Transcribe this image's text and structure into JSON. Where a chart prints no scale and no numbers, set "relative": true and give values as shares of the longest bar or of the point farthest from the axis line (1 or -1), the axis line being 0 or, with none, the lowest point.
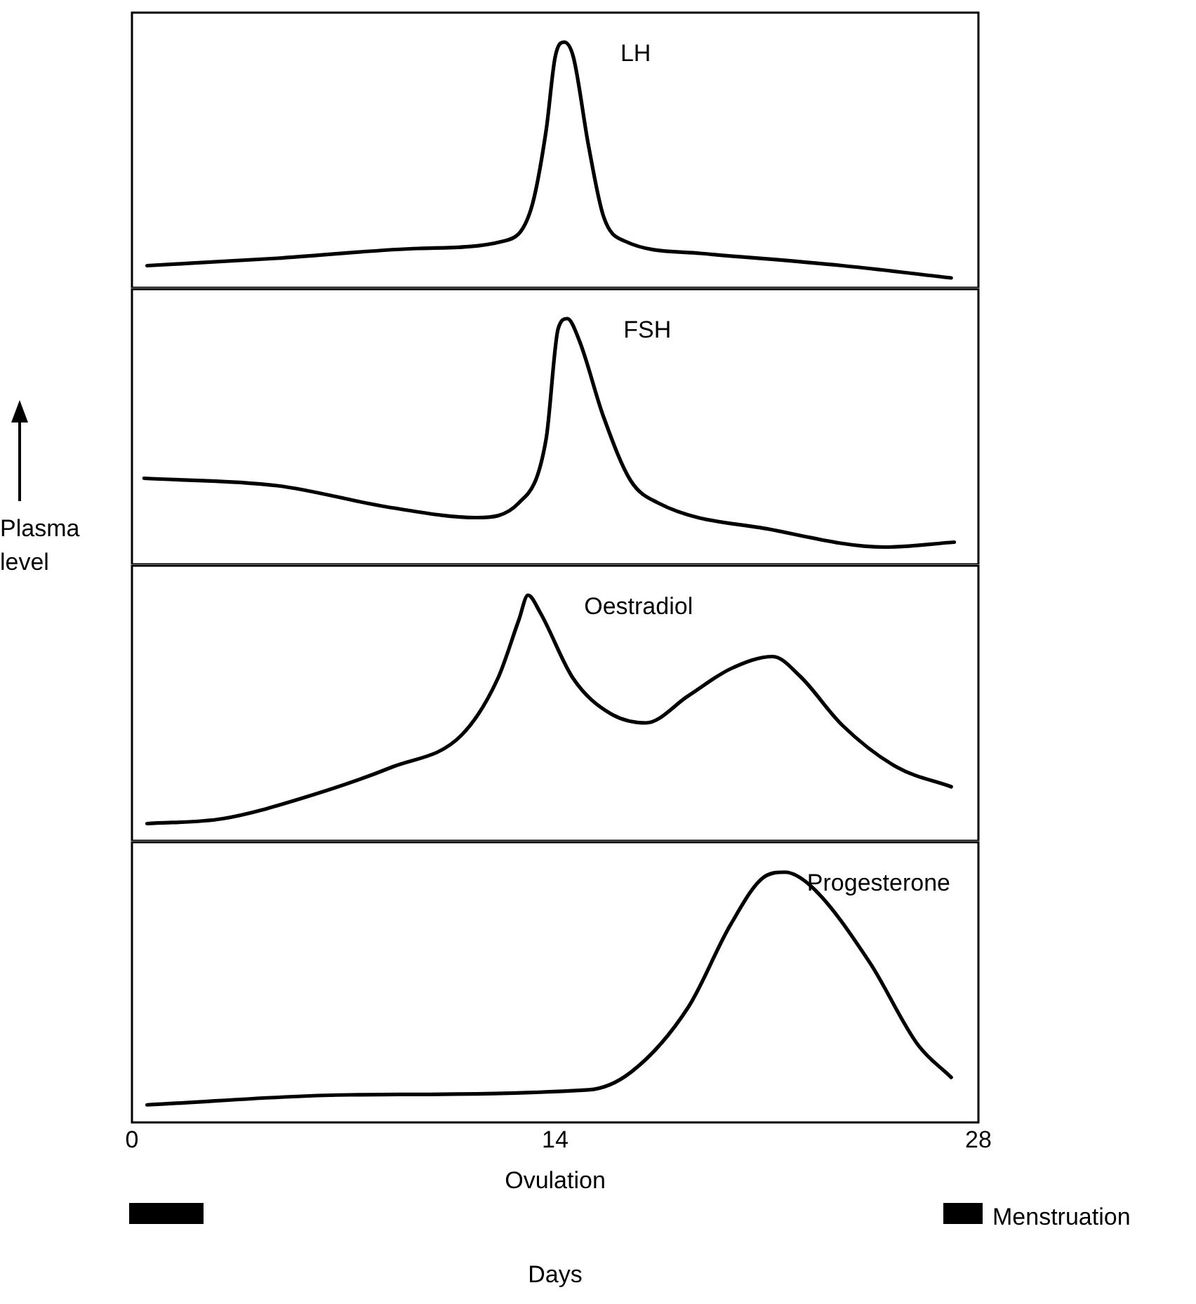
{
  "chart_data": [
    {
      "type": "line",
      "relative": true,
      "xlim": [
        0,
        28
      ],
      "xticks": [
        0,
        14,
        28
      ],
      "tick_labels": false,
      "legend": false,
      "marker": "none",
      "series": [
        {
          "name": "LH",
          "color": "#000000",
          "x": [
            0.5,
            4.8,
            9.5,
            12.3,
            13.2,
            13.7,
            14.0,
            14.3,
            14.6,
            15.1,
            15.6,
            16.3,
            18.8,
            23.5,
            27.1
          ],
          "values": [
            0.09,
            0.12,
            0.16,
            0.19,
            0.32,
            0.64,
            0.94,
            1,
            0.94,
            0.58,
            0.29,
            0.19,
            0.14,
            0.09,
            0.04
          ]
        }
      ]
    },
    {
      "type": "line",
      "relative": true,
      "xlim": [
        0,
        28
      ],
      "xticks": [
        0,
        14,
        28
      ],
      "tick_labels": false,
      "legend": false,
      "marker": "none",
      "ylabel": "Plasma level",
      "series": [
        {
          "name": "FSH",
          "color": "#000000",
          "x": [
            0.4,
            4.8,
            8.6,
            11.4,
            12.8,
            13.7,
            14.1,
            14.4,
            14.8,
            15.6,
            16.5,
            17.4,
            21.2,
            24.9,
            27.2
          ],
          "values": [
            0.35,
            0.32,
            0.23,
            0.19,
            0.25,
            0.51,
            0.96,
            1,
            0.91,
            0.6,
            0.34,
            0.25,
            0.14,
            0.07,
            0.09
          ]
        }
      ]
    },
    {
      "type": "line",
      "relative": true,
      "xlim": [
        0,
        28
      ],
      "xticks": [
        0,
        14,
        28
      ],
      "tick_labels": false,
      "legend": false,
      "marker": "none",
      "series": [
        {
          "name": "Oestradiol",
          "color": "#000000",
          "x": [
            0.5,
            3.0,
            5.8,
            8.6,
            10.9,
            12.1,
            12.8,
            13.1,
            13.5,
            14.6,
            15.8,
            17.0,
            18.4,
            19.8,
            21.2,
            22.1,
            23.5,
            25.3,
            27.1
          ],
          "values": [
            0.07,
            0.09,
            0.18,
            0.3,
            0.43,
            0.66,
            0.9,
            1,
            0.93,
            0.66,
            0.52,
            0.48,
            0.59,
            0.7,
            0.75,
            0.67,
            0.47,
            0.3,
            0.22
          ]
        }
      ]
    },
    {
      "type": "line",
      "relative": true,
      "xlim": [
        0,
        28
      ],
      "xticks": [
        0,
        14,
        28
      ],
      "tick_labels": "x",
      "legend": false,
      "marker": "none",
      "xlabel": "Days",
      "annotations": [
        "Ovulation",
        "Menstruation"
      ],
      "series": [
        {
          "name": "Progesterone",
          "color": "#000000",
          "x": [
            0.5,
            7.2,
            15.1,
            16.5,
            18.4,
            19.8,
            20.9,
            21.6,
            22.5,
            24.4,
            26.0,
            27.1
          ],
          "values": [
            0.07,
            0.11,
            0.13,
            0.2,
            0.46,
            0.79,
            0.98,
            1,
            0.94,
            0.64,
            0.31,
            0.18
          ]
        }
      ]
    }
  ]
}
